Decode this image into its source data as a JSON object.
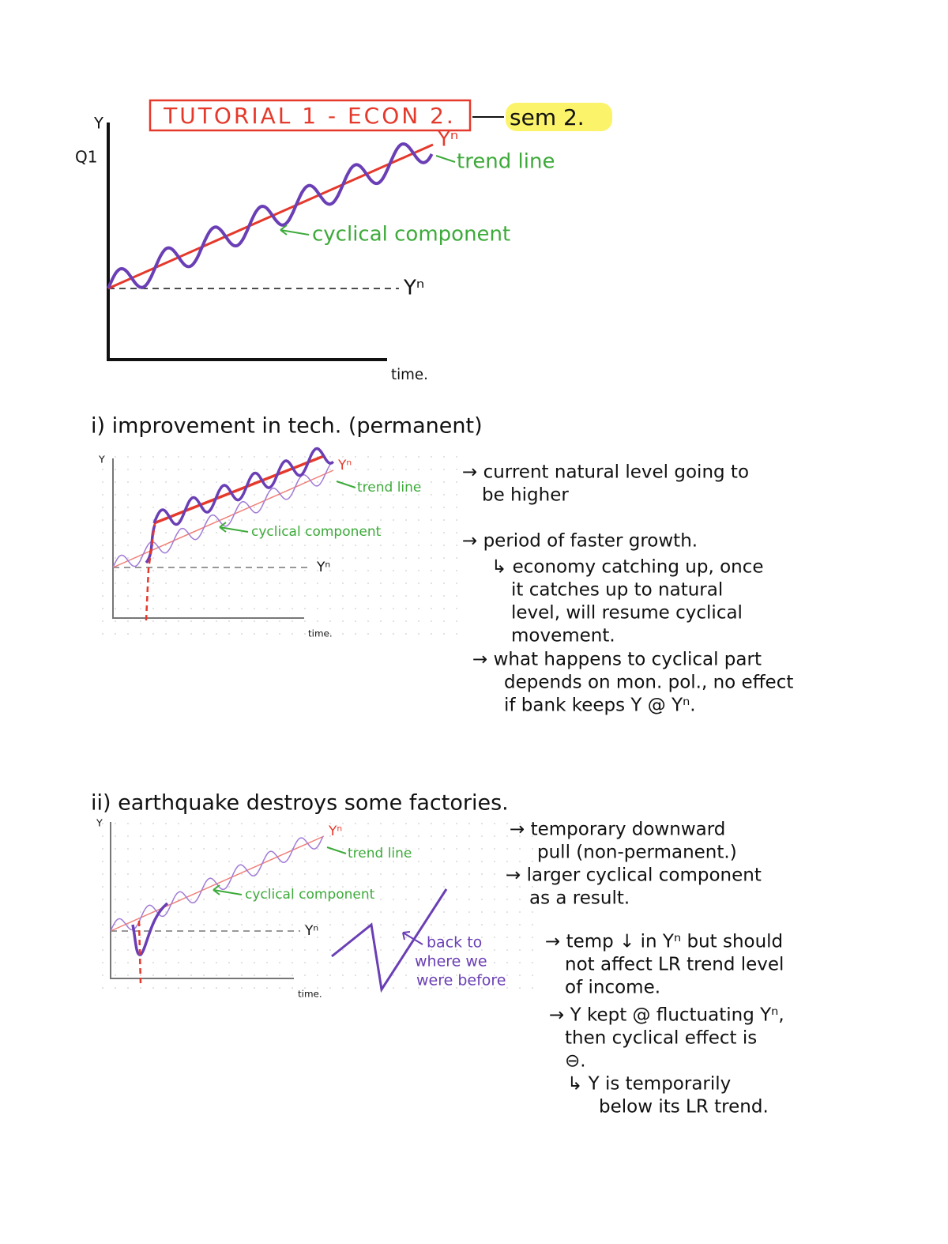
{
  "header": {
    "title": "TUTORIAL 1 - ECON 2.",
    "tag": "sem 2."
  },
  "question": "Q1",
  "diagram_1": {
    "y_axis": "Y",
    "trend_label": "Yⁿ",
    "trend_note": "trend line",
    "wave_note": "cyclical component",
    "base_label": "Yⁿ",
    "x_axis": "time."
  },
  "section_i": {
    "heading": "i) improvement in tech. (permanent)",
    "diagram": {
      "y_axis": "Y",
      "trend_label": "Yⁿ",
      "trend_note": "trend line",
      "wave_note": "cyclical component",
      "base_label": "Yⁿ",
      "x_axis": "time."
    },
    "notes": [
      [
        "→ current natural level going to",
        "be higher"
      ],
      [
        "→ period of faster growth."
      ],
      [
        "↳ economy catching up, once",
        "it catches up to natural",
        "level, will resume cyclical",
        "movement."
      ],
      [
        "→ what happens to cyclical part",
        "depends on mon. pol., no effect",
        "if bank keeps Y @ Yⁿ."
      ]
    ]
  },
  "section_ii": {
    "heading": "ii) earthquake destroys some factories.",
    "diagram": {
      "y_axis": "Y",
      "trend_label": "Yⁿ",
      "trend_note": "trend line",
      "wave_note": "cyclical component",
      "base_label": "Yⁿ",
      "x_axis": "time."
    },
    "sketch_note": [
      "back to",
      "where we",
      "were before"
    ],
    "notes": [
      [
        "→ temporary downward",
        "pull (non-permanent.)"
      ],
      [
        "→ larger cyclical component",
        "as a result."
      ],
      [
        "→ temp ↓ in Yⁿ but should",
        "not affect LR trend level",
        "of income."
      ],
      [
        "→ Y kept @ fluctuating Yⁿ,",
        "then cyclical effect is",
        "⊖."
      ],
      [
        "↳ Y is temporarily",
        "below its LR trend."
      ]
    ]
  }
}
